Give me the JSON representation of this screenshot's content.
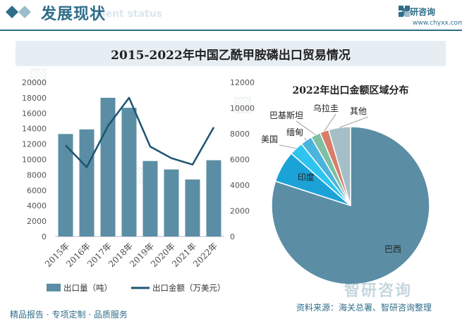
{
  "header": {
    "title": "发展现状",
    "subtitle_en": "ment status",
    "logo_text": "智研咨询",
    "url": "www.chyxx.com"
  },
  "title": "2015-2022年中国乙酰甲胺磷出口贸易情况",
  "colors": {
    "bar": "#5b8ea5",
    "line": "#1d5470",
    "accent": "#2f6d89"
  },
  "chart_data": [
    {
      "type": "bar",
      "categories": [
        "2015年",
        "2016年",
        "2017年",
        "2018年",
        "2019年",
        "2020年",
        "2021年",
        "2022年"
      ],
      "series": [
        {
          "name": "出口量（吨）",
          "type": "bar",
          "axis": "left",
          "values": [
            13300,
            13900,
            18000,
            16700,
            9800,
            8700,
            7400,
            9900
          ]
        },
        {
          "name": "出口金额（万美元）",
          "type": "line",
          "axis": "right",
          "values": [
            7100,
            5400,
            8600,
            10800,
            7000,
            6100,
            5600,
            8500
          ]
        }
      ],
      "left_axis": {
        "ticks": [
          "0",
          "2000",
          "4000",
          "6000",
          "8000",
          "10000",
          "12000",
          "14000",
          "16000",
          "18000",
          "20000"
        ],
        "ylim": [
          0,
          20000
        ]
      },
      "right_axis": {
        "ticks": [
          "0",
          "2000",
          "4000",
          "6000",
          "8000",
          "10000",
          "12000"
        ],
        "ylim": [
          0,
          12000
        ]
      },
      "legend_position": "bottom"
    },
    {
      "type": "pie",
      "title": "2022年出口金额区域分布",
      "slices": [
        {
          "label": "巴西",
          "value": 80.0,
          "color": "#5b8ea5"
        },
        {
          "label": "印度",
          "value": 6.5,
          "color": "#1ba3d8"
        },
        {
          "label": "美国",
          "value": 2.8,
          "color": "#2ec4f0"
        },
        {
          "label": "缅甸",
          "value": 2.4,
          "color": "#4ab4dc"
        },
        {
          "label": "巴基斯坦",
          "value": 2.0,
          "color": "#7fbfa3"
        },
        {
          "label": "乌拉圭",
          "value": 1.8,
          "color": "#d97d6a"
        },
        {
          "label": "其他",
          "value": 4.5,
          "color": "#a5bfc9"
        }
      ]
    }
  ],
  "footer": {
    "left": "精品报告 · 专项定制 · 品质服务",
    "source": "资料来源：海关总署、智研咨询整理",
    "watermark": "智研咨询"
  }
}
